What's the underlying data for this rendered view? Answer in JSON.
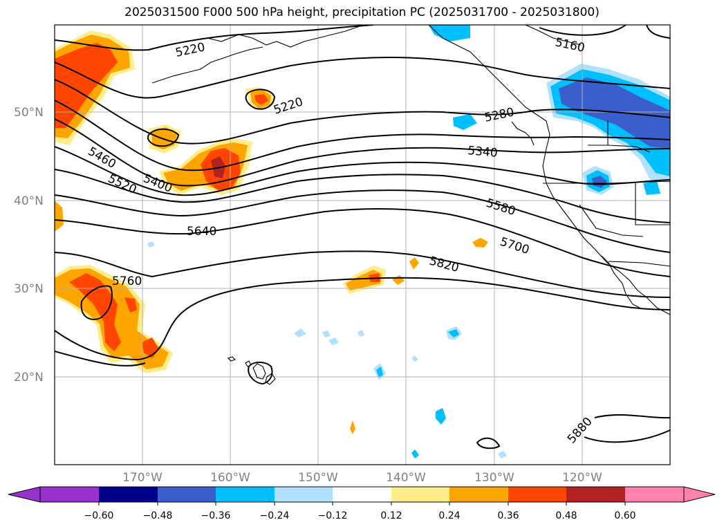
{
  "title": "2025031500 F000 500 hPa height, precipitation PC (2025031700 - 2025031800)",
  "map": {
    "lon_labels": [
      "170°W",
      "160°W",
      "150°W",
      "140°W",
      "130°W",
      "120°W"
    ],
    "lat_labels": [
      "50°N",
      "40°N",
      "30°N",
      "20°N"
    ],
    "contour_labels": [
      "5220",
      "5220",
      "5160",
      "5280",
      "5340",
      "5460",
      "5400",
      "5520",
      "5580",
      "5640",
      "5700",
      "5760",
      "5820",
      "5880"
    ],
    "contour_color": "#000000",
    "grid": true
  },
  "colorbar": {
    "tick_labels": [
      "−0.60",
      "−0.48",
      "−0.36",
      "−0.24",
      "−0.12",
      "0.12",
      "0.24",
      "0.36",
      "0.48",
      "0.60"
    ],
    "colors": [
      "#9932cc",
      "#00008b",
      "#3a5fcd",
      "#00bfff",
      "#b0e2ff",
      "#ffffff",
      "#ffec8b",
      "#ffa500",
      "#ff4500",
      "#b22222",
      "#ff82ab"
    ]
  }
}
